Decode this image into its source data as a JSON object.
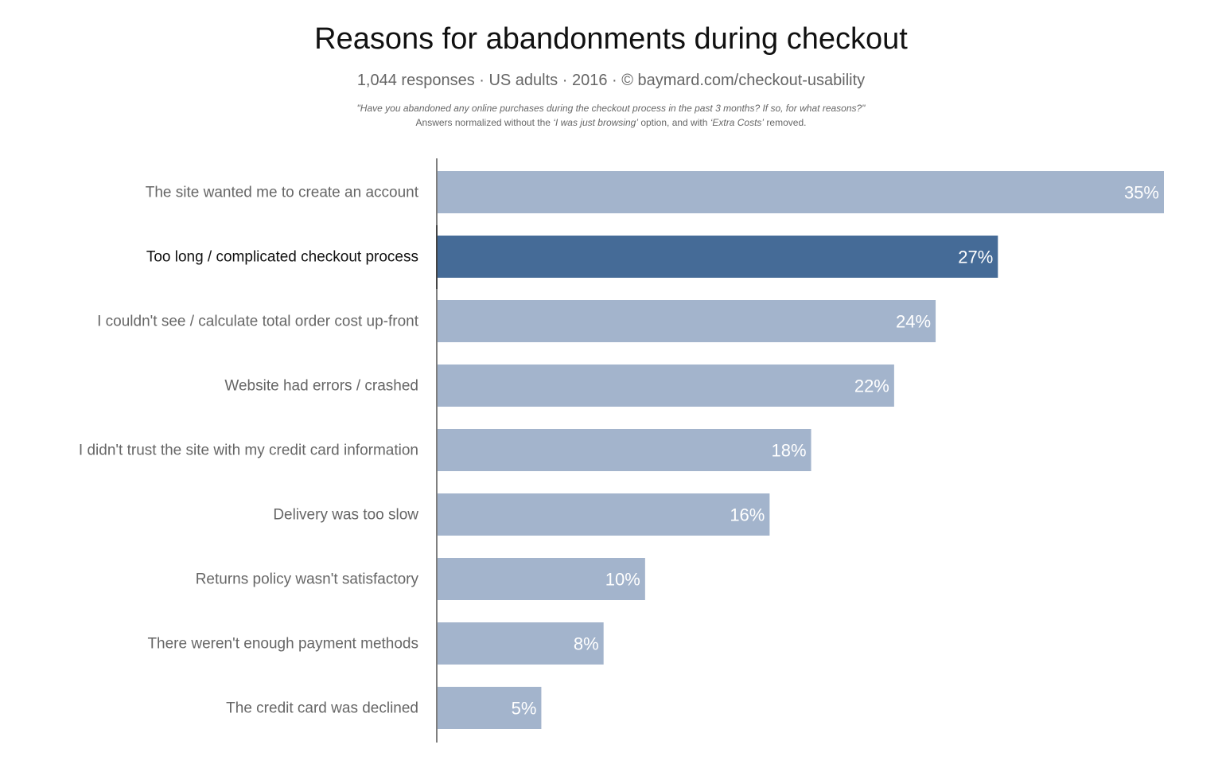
{
  "chart_data": {
    "type": "bar",
    "orientation": "horizontal",
    "title": "Reasons for abandonments during checkout",
    "subtitle": "1,044 responses  ·  US adults  ·  2016  ·  © baymard.com/checkout-usability",
    "note_question": "\"Have you abandoned any online purchases during the checkout process in the past 3 months? If so, for what reasons?\"",
    "note_prefix": "Answers normalized without the ",
    "note_em1": "‘I was just browsing’",
    "note_mid": " option, and with ",
    "note_em2": "‘Extra Costs’",
    "note_suffix": " removed.",
    "categories": [
      "The site wanted me to create an account",
      "Too long / complicated checkout process",
      "I couldn't see / calculate total order cost up-front",
      "Website had errors / crashed",
      "I didn't trust the site with my credit card information",
      "Delivery was too slow",
      "Returns policy wasn't satisfactory",
      "There weren't enough payment methods",
      "The credit card was declined"
    ],
    "values": [
      35,
      27,
      24,
      22,
      18,
      16,
      10,
      8,
      5
    ],
    "value_labels": [
      "35%",
      "27%",
      "24%",
      "22%",
      "18%",
      "16%",
      "10%",
      "8%",
      "5%"
    ],
    "highlighted_index": 1,
    "xlim": [
      0,
      35
    ],
    "grid": false,
    "colors": {
      "bar": "#a3b4cc",
      "highlight": "#456b97",
      "axis": "#555555"
    }
  }
}
